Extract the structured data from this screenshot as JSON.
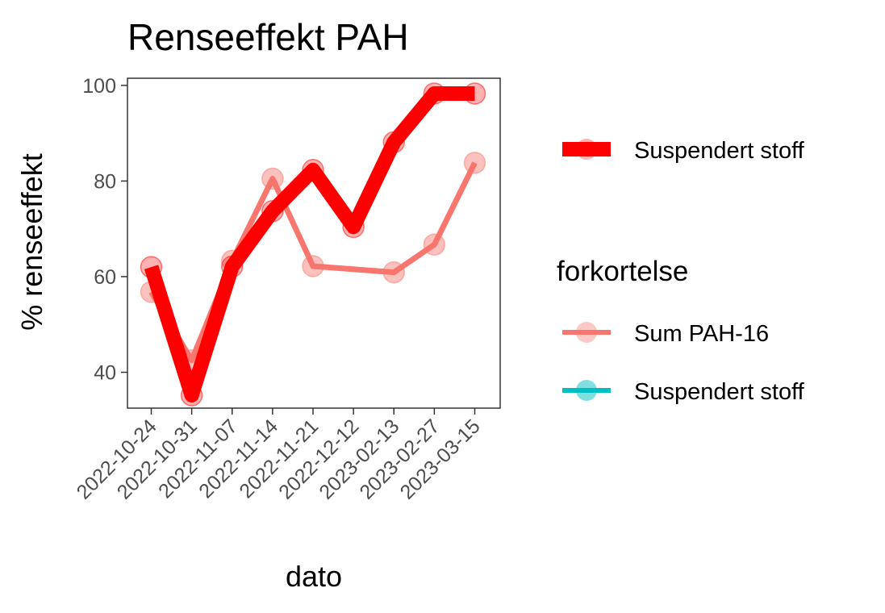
{
  "chart_data": {
    "type": "line",
    "title": "Renseeffekt PAH",
    "xlabel": "dato",
    "ylabel": "% renseeffekt",
    "categories": [
      "2022-10-24",
      "2022-10-31",
      "2022-11-07",
      "2022-11-14",
      "2022-11-21",
      "2022-12-12",
      "2023-02-13",
      "2023-02-27",
      "2023-03-15"
    ],
    "yticks": [
      "40",
      "60",
      "80",
      "100"
    ],
    "ylim": [
      32.5,
      101.5
    ],
    "grid": false,
    "series": [
      {
        "name": "Sum PAH-16",
        "color": "#F8766D",
        "values": [
          56.8,
          42.5,
          63.3,
          80.5,
          62.2,
          null,
          60.9,
          66.7,
          83.8
        ]
      },
      {
        "name": "Suspendert stoff",
        "color": "#FF0000",
        "values": [
          62.0,
          35.2,
          62.1,
          73.7,
          82.3,
          70.4,
          88.1,
          98.3,
          98.3
        ]
      }
    ],
    "legend": {
      "position": "right",
      "emphasis_label": "Suspendert stoff",
      "emphasis_color": "#FF0000",
      "title": "forkortelse",
      "entries": [
        {
          "label": "Sum PAH-16",
          "color": "#F8766D"
        },
        {
          "label": "Suspendert stoff",
          "color": "#00BFC4"
        }
      ]
    }
  }
}
